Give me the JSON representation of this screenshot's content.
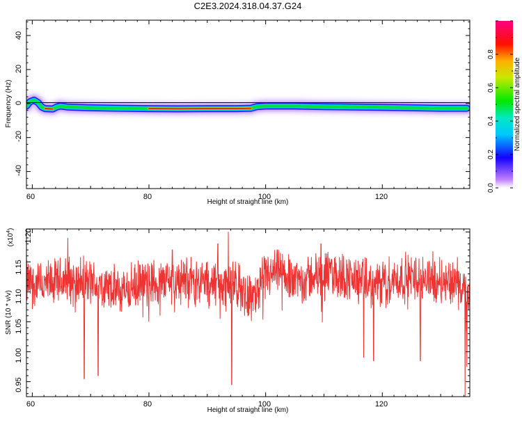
{
  "title": "C2E3.2024.318.04.37.G24",
  "colors": {
    "snr_line": "#ee3333",
    "frame": "#000000",
    "zero_line": "#000000"
  },
  "chart_data": [
    {
      "type": "heatmap",
      "xlabel": "Height of straight line (km)",
      "ylabel": "Frequency (Hz)",
      "xlim": [
        59,
        135
      ],
      "ylim": [
        -50,
        49
      ],
      "xticks": [
        "60",
        "80",
        "100",
        "120"
      ],
      "yticks": [
        "40",
        "20",
        "0",
        "-20",
        "-40"
      ],
      "ridge": {
        "description_points": [
          [
            59.0,
            -1.5
          ],
          [
            59.6,
            1.0
          ],
          [
            60.3,
            2.0
          ],
          [
            61.0,
            0.5
          ],
          [
            61.6,
            -2.0
          ],
          [
            62.2,
            -3.0
          ],
          [
            63.5,
            -3.2
          ],
          [
            64.2,
            -2.0
          ],
          [
            64.8,
            -1.5
          ],
          [
            66,
            -2.0
          ],
          [
            70,
            -2.5
          ],
          [
            75,
            -2.8
          ],
          [
            80,
            -3.0
          ],
          [
            85,
            -3.1
          ],
          [
            90,
            -3.0
          ],
          [
            95,
            -3.0
          ],
          [
            97.5,
            -2.8
          ],
          [
            98.5,
            -1.8
          ],
          [
            100,
            -1.5
          ],
          [
            105,
            -1.5
          ],
          [
            110,
            -1.8
          ],
          [
            115,
            -2.0
          ],
          [
            120,
            -2.2
          ],
          [
            125,
            -2.5
          ],
          [
            130,
            -2.8
          ],
          [
            134.5,
            -2.8
          ]
        ],
        "peak_segments": [
          [
            62,
            63.8
          ],
          [
            78,
            97.5
          ]
        ]
      },
      "colorbar": {
        "label": "Normalized spectral amplitude",
        "ticks": [
          "0.0",
          "0.2",
          "0.4",
          "0.6",
          "0.8"
        ],
        "range": [
          0,
          1
        ]
      }
    },
    {
      "type": "line",
      "xlabel": "Height of straight line (km)",
      "ylabel": "SNR (10 * v/v)",
      "multiplier_label": "(x10",
      "multiplier_exp": "4",
      "xlim": [
        59,
        135
      ],
      "ylim": [
        0.925,
        1.205
      ],
      "xticks": [
        "60",
        "80",
        "100",
        "120"
      ],
      "yticks": [
        "1.20",
        "1.15",
        "1.10",
        "1.05",
        "1.00",
        "0.95"
      ],
      "series": [
        {
          "color": "#ee3333",
          "baseline": [
            [
              59,
              1.115
            ],
            [
              62,
              1.11
            ],
            [
              66,
              1.12
            ],
            [
              70,
              1.115
            ],
            [
              75,
              1.1
            ],
            [
              80,
              1.115
            ],
            [
              85,
              1.12
            ],
            [
              90,
              1.115
            ],
            [
              95,
              1.11
            ],
            [
              98,
              1.09
            ],
            [
              100,
              1.125
            ],
            [
              103,
              1.13
            ],
            [
              106,
              1.12
            ],
            [
              110,
              1.13
            ],
            [
              114,
              1.125
            ],
            [
              118,
              1.11
            ],
            [
              122,
              1.12
            ],
            [
              126,
              1.125
            ],
            [
              130,
              1.12
            ],
            [
              133,
              1.115
            ],
            [
              134,
              1.1
            ],
            [
              134.5,
              1.08
            ],
            [
              135,
              1.1
            ]
          ],
          "noise_amplitude": 0.06,
          "spikes": [
            [
              66.1,
              1.19
            ],
            [
              68.9,
              0.955
            ],
            [
              71.3,
              0.96
            ],
            [
              84.0,
              1.17
            ],
            [
              91.8,
              1.18
            ],
            [
              93.6,
              1.2
            ],
            [
              94.2,
              0.945
            ],
            [
              102.0,
              1.17
            ],
            [
              109.5,
              1.18
            ],
            [
              116.8,
              0.99
            ],
            [
              118.5,
              0.985
            ],
            [
              126.5,
              0.985
            ],
            [
              134.2,
              0.925
            ],
            [
              134.5,
              0.975
            ]
          ]
        }
      ]
    }
  ]
}
